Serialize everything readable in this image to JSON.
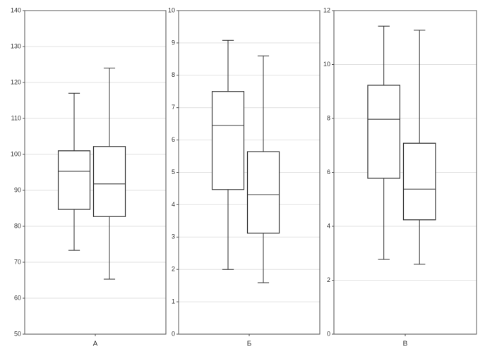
{
  "chart_data": [
    {
      "type": "box",
      "xlabel": "А",
      "ylim": [
        50,
        140
      ],
      "yticks": [
        50,
        60,
        70,
        80,
        90,
        100,
        110,
        120,
        130,
        140
      ],
      "grid": true,
      "color": "#333333",
      "boxes": [
        {
          "min": 73.3,
          "q1": 84.7,
          "median": 95.3,
          "q3": 101,
          "max": 117
        },
        {
          "min": 65.3,
          "q1": 82.7,
          "median": 91.8,
          "q3": 102.2,
          "max": 124
        }
      ]
    },
    {
      "type": "box",
      "xlabel": "Б",
      "ylim": [
        0,
        10
      ],
      "yticks": [
        0,
        1,
        2,
        3,
        4,
        5,
        6,
        7,
        8,
        9,
        10
      ],
      "grid": true,
      "color": "#333333",
      "boxes": [
        {
          "min": 2.0,
          "q1": 4.47,
          "median": 6.45,
          "q3": 7.5,
          "max": 9.08
        },
        {
          "min": 1.59,
          "q1": 3.12,
          "median": 4.31,
          "q3": 5.64,
          "max": 8.6
        }
      ]
    },
    {
      "type": "box",
      "xlabel": "В",
      "ylim": [
        0,
        12
      ],
      "yticks": [
        0,
        2,
        4,
        6,
        8,
        10,
        12
      ],
      "grid": true,
      "color": "#333333",
      "boxes": [
        {
          "min": 2.77,
          "q1": 5.78,
          "median": 7.97,
          "q3": 9.23,
          "max": 11.42
        },
        {
          "min": 2.59,
          "q1": 4.24,
          "median": 5.38,
          "q3": 7.08,
          "max": 11.27
        }
      ]
    }
  ]
}
